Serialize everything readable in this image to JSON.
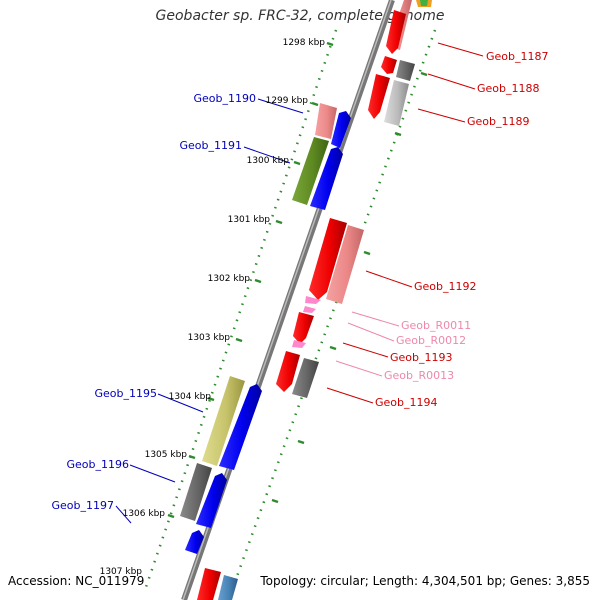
{
  "title": "Geobacter sp. FRC-32, complete genome",
  "accession": "Accession: NC_011979",
  "summary": "Topology: circular; Length: 4,304,501 bp; Genes: 3,855",
  "ticks": [
    "1298 kbp",
    "1299 kbp",
    "1300 kbp",
    "1301 kbp",
    "1302 kbp",
    "1303 kbp",
    "1304 kbp",
    "1305 kbp",
    "1306 kbp",
    "1307 kbp"
  ],
  "genes": {
    "Geob_1187": "Geob_1187",
    "Geob_1188": "Geob_1188",
    "Geob_1189": "Geob_1189",
    "Geob_1190": "Geob_1190",
    "Geob_1191": "Geob_1191",
    "Geob_1192": "Geob_1192",
    "Geob_R0011": "Geob_R0011",
    "Geob_R0012": "Geob_R0012",
    "Geob_1193": "Geob_1193",
    "Geob_R0013": "Geob_R0013",
    "Geob_1194": "Geob_1194",
    "Geob_1195": "Geob_1195",
    "Geob_1196": "Geob_1196",
    "Geob_1197": "Geob_1197"
  },
  "colors": {
    "forward_cds": "#1010ee",
    "reverse_cds": "#ee1010",
    "forward_label": "#0000bb",
    "reverse_label": "#cc0000",
    "rna_label": "#ee88aa",
    "tick": "#2e8b2e",
    "backbone": "#777777"
  }
}
